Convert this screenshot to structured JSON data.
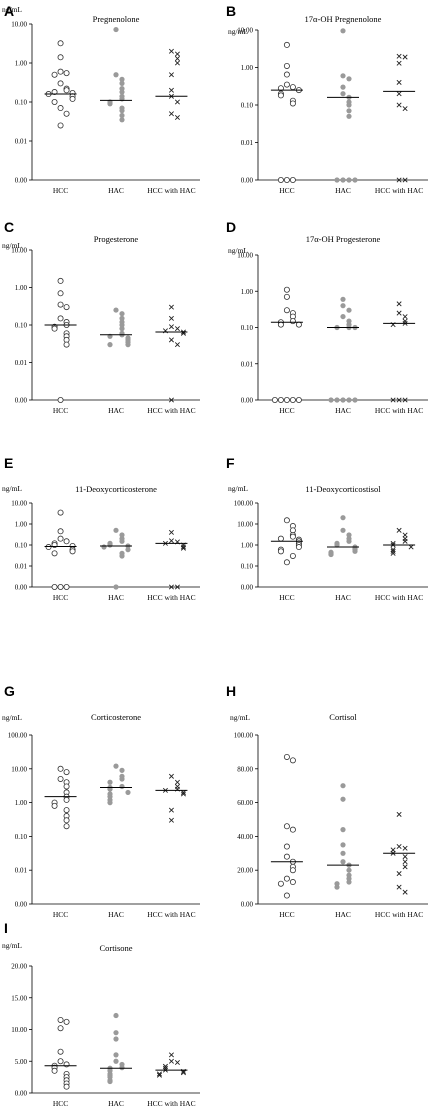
{
  "chart_data": [
    {
      "panel": "A",
      "type": "scatter",
      "title": "Pregnenolone",
      "unit": "ng/mL",
      "scale": "log",
      "ticks": [
        "0.00",
        "0.01",
        "0.10",
        "1.00",
        "10.00"
      ],
      "categories": [
        "HCC",
        "HAC",
        "HCC with HAC"
      ],
      "groups": [
        {
          "marker": "circle",
          "median": 0.16,
          "values": [
            3.2,
            1.4,
            0.6,
            0.55,
            0.5,
            0.3,
            0.22,
            0.2,
            0.18,
            0.17,
            0.16,
            0.14,
            0.12,
            0.1,
            0.07,
            0.05,
            0.025
          ]
        },
        {
          "marker": "dot",
          "median": 0.11,
          "values": [
            7.2,
            0.5,
            0.38,
            0.3,
            0.22,
            0.18,
            0.14,
            0.12,
            0.1,
            0.09,
            0.07,
            0.06,
            0.045,
            0.035
          ]
        },
        {
          "marker": "x",
          "median": 0.14,
          "values": [
            2.0,
            1.7,
            1.3,
            1.0,
            0.5,
            0.2,
            0.14,
            0.1,
            0.05,
            0.04
          ]
        }
      ]
    },
    {
      "panel": "B",
      "type": "scatter",
      "title": "17α-OH Pregnenolone",
      "unit": "ng/mL",
      "scale": "log",
      "ticks": [
        "0.00",
        "0.01",
        "0.10",
        "1.00",
        "10.00"
      ],
      "categories": [
        "HCC",
        "HAC",
        "HCC with HAC"
      ],
      "groups": [
        {
          "marker": "circle",
          "median": 0.25,
          "values": [
            4.0,
            1.1,
            0.65,
            0.35,
            0.3,
            0.28,
            0.25,
            0.2,
            0.18,
            0.13,
            0.11,
            0.0,
            0.0,
            0.0
          ]
        },
        {
          "marker": "dot",
          "median": 0.16,
          "values": [
            9.5,
            0.6,
            0.5,
            0.3,
            0.2,
            0.16,
            0.12,
            0.1,
            0.07,
            0.05,
            0.0,
            0.0,
            0.0,
            0.0
          ]
        },
        {
          "marker": "x",
          "median": 0.23,
          "values": [
            2.0,
            1.9,
            1.3,
            0.4,
            0.2,
            0.1,
            0.08,
            0.0,
            0.0
          ]
        }
      ]
    },
    {
      "panel": "C",
      "type": "scatter",
      "title": "Progesterone",
      "unit": "ng/mL",
      "scale": "log",
      "ticks": [
        "0.00",
        "0.01",
        "0.10",
        "1.00",
        "10.00"
      ],
      "categories": [
        "HCC",
        "HAC",
        "HCC with HAC"
      ],
      "groups": [
        {
          "marker": "circle",
          "median": 0.1,
          "values": [
            1.5,
            0.7,
            0.35,
            0.3,
            0.15,
            0.12,
            0.1,
            0.09,
            0.08,
            0.06,
            0.05,
            0.04,
            0.03,
            0.0
          ]
        },
        {
          "marker": "dot",
          "median": 0.055,
          "values": [
            0.25,
            0.2,
            0.15,
            0.12,
            0.1,
            0.08,
            0.06,
            0.055,
            0.05,
            0.045,
            0.04,
            0.035,
            0.03,
            0.03
          ]
        },
        {
          "marker": "x",
          "median": 0.065,
          "values": [
            0.3,
            0.15,
            0.09,
            0.08,
            0.07,
            0.065,
            0.06,
            0.04,
            0.03,
            0.0
          ]
        }
      ]
    },
    {
      "panel": "D",
      "type": "scatter",
      "title": "17α-OH Progesterone",
      "unit": "ng/mL",
      "scale": "log",
      "ticks": [
        "0.00",
        "0.01",
        "0.10",
        "1.00",
        "10.00"
      ],
      "categories": [
        "HCC",
        "HAC",
        "HCC with HAC"
      ],
      "groups": [
        {
          "marker": "circle",
          "median": 0.14,
          "values": [
            1.1,
            0.7,
            0.3,
            0.25,
            0.2,
            0.15,
            0.14,
            0.12,
            0.12,
            0.0,
            0.0,
            0.0,
            0.0,
            0.0
          ]
        },
        {
          "marker": "dot",
          "median": 0.1,
          "values": [
            0.6,
            0.4,
            0.3,
            0.2,
            0.15,
            0.12,
            0.1,
            0.1,
            0.1,
            0.0,
            0.0,
            0.0,
            0.0,
            0.0
          ]
        },
        {
          "marker": "x",
          "median": 0.13,
          "values": [
            0.45,
            0.25,
            0.2,
            0.15,
            0.13,
            0.12,
            0.0,
            0.0,
            0.0
          ]
        }
      ]
    },
    {
      "panel": "E",
      "type": "scatter",
      "title": "11-Deoxycorticosterone",
      "unit": "ng/mL",
      "scale": "log",
      "ticks": [
        "0.00",
        "0.01",
        "0.10",
        "1.00",
        "10.00"
      ],
      "categories": [
        "HCC",
        "HAC",
        "HCC with HAC"
      ],
      "groups": [
        {
          "marker": "circle",
          "median": 0.085,
          "values": [
            3.5,
            0.45,
            0.2,
            0.15,
            0.12,
            0.1,
            0.09,
            0.08,
            0.06,
            0.05,
            0.04,
            0.0,
            0.0,
            0.0
          ]
        },
        {
          "marker": "dot",
          "median": 0.09,
          "values": [
            0.5,
            0.3,
            0.2,
            0.15,
            0.12,
            0.1,
            0.09,
            0.08,
            0.06,
            0.04,
            0.03,
            0.0
          ]
        },
        {
          "marker": "x",
          "median": 0.12,
          "values": [
            0.4,
            0.16,
            0.14,
            0.12,
            0.1,
            0.08,
            0.07,
            0.0,
            0.0
          ]
        }
      ]
    },
    {
      "panel": "F",
      "type": "scatter",
      "title": "11-Deoxycorticostisol",
      "unit": "ng/mL",
      "scale": "log",
      "ticks": [
        "0.00",
        "0.10",
        "1.00",
        "10.00",
        "100.00"
      ],
      "categories": [
        "HCC",
        "HAC",
        "HCC with HAC"
      ],
      "groups": [
        {
          "marker": "circle",
          "median": 1.5,
          "values": [
            15,
            8,
            5,
            3,
            2.5,
            2,
            1.8,
            1.5,
            1.2,
            1,
            0.8,
            0.6,
            0.5,
            0.3,
            0.15
          ]
        },
        {
          "marker": "dot",
          "median": 0.8,
          "values": [
            20,
            5,
            3,
            2,
            1.5,
            1.2,
            1,
            0.8,
            0.7,
            0.6,
            0.5,
            0.45,
            0.4,
            0.35
          ]
        },
        {
          "marker": "x",
          "median": 1.0,
          "values": [
            5,
            3,
            2,
            1.5,
            1.2,
            1,
            0.8,
            0.6,
            0.5,
            0.4
          ]
        }
      ]
    },
    {
      "panel": "G",
      "type": "scatter",
      "title": "Corticosterone",
      "unit": "ng/mL",
      "scale": "log",
      "ticks": [
        "0.00",
        "0.01",
        "0.10",
        "1.00",
        "10.00",
        "100.00"
      ],
      "categories": [
        "HCC",
        "HAC",
        "HCC with HAC"
      ],
      "groups": [
        {
          "marker": "circle",
          "median": 1.5,
          "values": [
            10,
            8,
            5,
            4,
            3,
            2,
            1.5,
            1.2,
            1,
            0.8,
            0.6,
            0.4,
            0.3,
            0.2
          ]
        },
        {
          "marker": "dot",
          "median": 2.8,
          "values": [
            12,
            9,
            6,
            5,
            4,
            3,
            2.8,
            2.5,
            2,
            1.8,
            1.5,
            1.2,
            1
          ]
        },
        {
          "marker": "x",
          "median": 2.3,
          "values": [
            6,
            4,
            3,
            2.5,
            2.3,
            2,
            1.8,
            0.6,
            0.3
          ]
        }
      ]
    },
    {
      "panel": "H",
      "type": "scatter",
      "title": "Cortisol",
      "unit": "ng/mL",
      "scale": "linear",
      "ticks": [
        "0.00",
        "20.00",
        "40.00",
        "60.00",
        "80.00",
        "100.00"
      ],
      "categories": [
        "HCC",
        "HAC",
        "HCC with HAC"
      ],
      "groups": [
        {
          "marker": "circle",
          "median": 25,
          "values": [
            87,
            85,
            46,
            44,
            34,
            28,
            25,
            22,
            20,
            15,
            13,
            12,
            5
          ]
        },
        {
          "marker": "dot",
          "median": 23,
          "values": [
            70,
            62,
            44,
            35,
            30,
            25,
            23,
            20,
            17,
            15,
            13,
            12,
            10
          ]
        },
        {
          "marker": "x",
          "median": 30,
          "values": [
            53,
            34,
            33,
            32,
            30,
            28,
            25,
            22,
            18,
            10,
            7
          ]
        }
      ]
    },
    {
      "panel": "I",
      "type": "scatter",
      "title": "Cortisone",
      "unit": "ng/mL",
      "scale": "linear",
      "ticks": [
        "0.00",
        "5.00",
        "10.00",
        "15.00",
        "20.00"
      ],
      "categories": [
        "HCC",
        "HAC",
        "HCC with HAC"
      ],
      "groups": [
        {
          "marker": "circle",
          "median": 4.3,
          "values": [
            11.5,
            11.2,
            10.2,
            6.5,
            5,
            4.5,
            4.3,
            4,
            3.5,
            3,
            2.5,
            2,
            1.5,
            1
          ]
        },
        {
          "marker": "dot",
          "median": 3.9,
          "values": [
            12.2,
            9.5,
            8.5,
            6,
            5,
            4.5,
            4,
            3.9,
            3.5,
            3,
            2.8,
            2.5,
            2,
            1.8
          ]
        },
        {
          "marker": "x",
          "median": 3.6,
          "values": [
            6,
            5,
            4.8,
            4.2,
            3.9,
            3.6,
            3.4,
            3.2,
            3,
            2.8
          ]
        }
      ]
    }
  ]
}
